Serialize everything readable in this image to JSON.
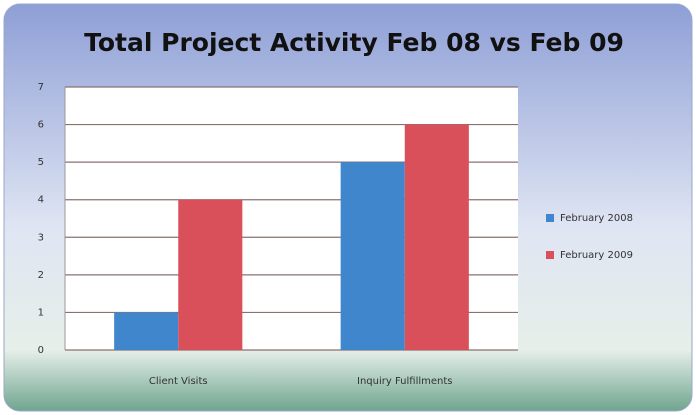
{
  "chart_data": {
    "type": "bar",
    "title": "Total Project Activity Feb 08 vs Feb 09",
    "categories": [
      "Client Visits",
      "Inquiry Fulfillments"
    ],
    "series": [
      {
        "name": "February 2008",
        "color": "#3f86cc",
        "values": [
          1,
          5
        ]
      },
      {
        "name": "February 2009",
        "color": "#d9505a",
        "values": [
          4,
          6
        ]
      }
    ],
    "ylim": [
      0,
      7
    ],
    "yticks": [
      0,
      1,
      2,
      3,
      4,
      5,
      6,
      7
    ],
    "grid": true,
    "legend": "right"
  }
}
